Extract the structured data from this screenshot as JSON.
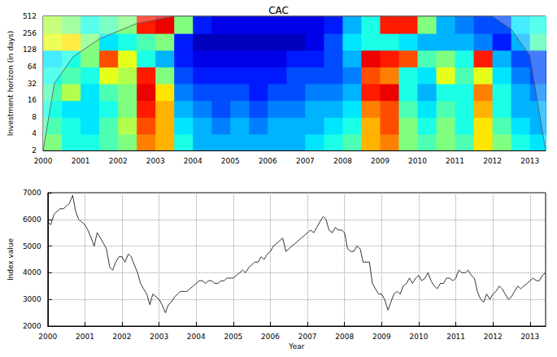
{
  "chart_data": [
    {
      "type": "heatmap",
      "title": "CAC",
      "ylabel": "Investment horizon (in days)",
      "log": "y",
      "xlim": [
        2000,
        2013.42
      ],
      "xticks": [
        2000,
        2001,
        2002,
        2003,
        2004,
        2005,
        2006,
        2007,
        2008,
        2009,
        2010,
        2011,
        2012,
        2013
      ],
      "ylim": [
        2,
        512
      ],
      "yticks": [
        2,
        4,
        8,
        16,
        32,
        64,
        128,
        256,
        512
      ],
      "x": [
        2000.0,
        2000.5,
        2001.0,
        2001.5,
        2002.0,
        2002.5,
        2003.0,
        2003.5,
        2004.0,
        2004.5,
        2005.0,
        2005.5,
        2006.0,
        2006.5,
        2007.0,
        2007.5,
        2008.0,
        2008.5,
        2009.0,
        2009.5,
        2010.0,
        2010.5,
        2011.0,
        2011.5,
        2012.0,
        2012.5,
        2013.0
      ],
      "y": [
        2,
        4,
        8,
        16,
        32,
        64,
        128,
        256
      ],
      "values": [
        [
          0.5,
          0.4,
          0.4,
          0.45,
          0.5,
          0.75,
          0.7,
          0.4,
          0.3,
          0.3,
          0.3,
          0.3,
          0.3,
          0.3,
          0.35,
          0.4,
          0.45,
          0.7,
          0.75,
          0.5,
          0.45,
          0.5,
          0.45,
          0.65,
          0.5,
          0.4,
          0.35
        ],
        [
          0.45,
          0.4,
          0.35,
          0.45,
          0.55,
          0.8,
          0.7,
          0.35,
          0.3,
          0.25,
          0.3,
          0.25,
          0.3,
          0.3,
          0.3,
          0.35,
          0.4,
          0.7,
          0.8,
          0.5,
          0.4,
          0.5,
          0.4,
          0.65,
          0.45,
          0.35,
          0.3
        ],
        [
          0.4,
          0.35,
          0.35,
          0.4,
          0.5,
          0.85,
          0.7,
          0.3,
          0.25,
          0.2,
          0.25,
          0.2,
          0.25,
          0.25,
          0.3,
          0.3,
          0.35,
          0.75,
          0.8,
          0.45,
          0.35,
          0.45,
          0.4,
          0.7,
          0.4,
          0.3,
          0.3
        ],
        [
          0.45,
          0.55,
          0.35,
          0.45,
          0.5,
          0.9,
          0.65,
          0.25,
          0.2,
          0.2,
          0.2,
          0.15,
          0.2,
          0.2,
          0.25,
          0.25,
          0.3,
          0.85,
          0.9,
          0.4,
          0.3,
          0.4,
          0.4,
          0.75,
          0.4,
          0.3,
          0.25
        ],
        [
          0.4,
          0.45,
          0.4,
          0.6,
          0.55,
          0.85,
          0.5,
          0.2,
          0.15,
          0.15,
          0.15,
          0.15,
          0.15,
          0.2,
          0.2,
          0.2,
          0.25,
          0.8,
          0.75,
          0.4,
          0.35,
          0.6,
          0.45,
          0.6,
          0.35,
          0.25,
          0.2
        ],
        [
          0.35,
          0.4,
          0.5,
          0.8,
          0.6,
          0.4,
          0.3,
          0.15,
          0.1,
          0.1,
          0.1,
          0.1,
          0.1,
          0.15,
          0.15,
          0.2,
          0.3,
          0.9,
          0.85,
          0.8,
          0.45,
          0.5,
          0.4,
          0.85,
          0.3,
          0.2,
          0.2
        ],
        [
          0.6,
          0.65,
          0.5,
          0.35,
          0.4,
          0.45,
          0.5,
          0.15,
          0.05,
          0.05,
          0.05,
          0.05,
          0.05,
          0.05,
          0.1,
          0.2,
          0.35,
          0.4,
          0.4,
          0.35,
          0.3,
          0.3,
          0.3,
          0.25,
          0.15,
          0.3,
          0.45
        ],
        [
          0.55,
          0.5,
          0.4,
          0.45,
          0.5,
          0.85,
          0.9,
          0.5,
          0.15,
          0.1,
          0.1,
          0.1,
          0.1,
          0.1,
          0.1,
          0.15,
          0.3,
          0.4,
          0.85,
          0.85,
          0.5,
          0.3,
          0.25,
          0.2,
          0.2,
          0.35,
          0.4
        ]
      ],
      "zlim": [
        0,
        1
      ],
      "cone_of_influence": {
        "x": [
          2000,
          2000.3,
          2000.8,
          2001.5,
          2002.5,
          2003.5,
          2012.0,
          2012.5,
          2013.0,
          2013.42
        ],
        "y": [
          2,
          32,
          96,
          200,
          380,
          512,
          512,
          300,
          100,
          2
        ]
      }
    },
    {
      "type": "line",
      "xlabel": "Year",
      "ylabel": "Index value",
      "color": "#000000",
      "grid": true,
      "xlim": [
        2000,
        2013.42
      ],
      "xticks": [
        2000,
        2001,
        2002,
        2003,
        2004,
        2005,
        2006,
        2007,
        2008,
        2009,
        2010,
        2011,
        2012,
        2013
      ],
      "ylim": [
        2000,
        7000
      ],
      "yticks": [
        2000,
        3000,
        4000,
        5000,
        6000,
        7000
      ],
      "x": [
        2000.0,
        2000.08,
        2000.17,
        2000.25,
        2000.33,
        2000.42,
        2000.5,
        2000.58,
        2000.67,
        2000.75,
        2000.83,
        2000.92,
        2001.0,
        2001.08,
        2001.17,
        2001.25,
        2001.33,
        2001.42,
        2001.5,
        2001.58,
        2001.67,
        2001.75,
        2001.83,
        2001.92,
        2002.0,
        2002.08,
        2002.17,
        2002.25,
        2002.33,
        2002.42,
        2002.5,
        2002.58,
        2002.67,
        2002.75,
        2002.83,
        2002.92,
        2003.0,
        2003.08,
        2003.17,
        2003.25,
        2003.33,
        2003.42,
        2003.5,
        2003.58,
        2003.67,
        2003.75,
        2003.83,
        2003.92,
        2004.0,
        2004.08,
        2004.17,
        2004.25,
        2004.33,
        2004.42,
        2004.5,
        2004.58,
        2004.67,
        2004.75,
        2004.83,
        2004.92,
        2005.0,
        2005.08,
        2005.17,
        2005.25,
        2005.33,
        2005.42,
        2005.5,
        2005.58,
        2005.67,
        2005.75,
        2005.83,
        2005.92,
        2006.0,
        2006.08,
        2006.17,
        2006.25,
        2006.33,
        2006.42,
        2006.5,
        2006.58,
        2006.67,
        2006.75,
        2006.83,
        2006.92,
        2007.0,
        2007.08,
        2007.17,
        2007.25,
        2007.33,
        2007.42,
        2007.5,
        2007.58,
        2007.67,
        2007.75,
        2007.83,
        2007.92,
        2008.0,
        2008.08,
        2008.17,
        2008.25,
        2008.33,
        2008.42,
        2008.5,
        2008.58,
        2008.67,
        2008.75,
        2008.83,
        2008.92,
        2009.0,
        2009.08,
        2009.17,
        2009.25,
        2009.33,
        2009.42,
        2009.5,
        2009.58,
        2009.67,
        2009.75,
        2009.83,
        2009.92,
        2010.0,
        2010.08,
        2010.17,
        2010.25,
        2010.33,
        2010.42,
        2010.5,
        2010.58,
        2010.67,
        2010.75,
        2010.83,
        2010.92,
        2011.0,
        2011.08,
        2011.17,
        2011.25,
        2011.33,
        2011.42,
        2011.5,
        2011.58,
        2011.67,
        2011.75,
        2011.83,
        2011.92,
        2012.0,
        2012.08,
        2012.17,
        2012.25,
        2012.33,
        2012.42,
        2012.5,
        2012.58,
        2012.67,
        2012.75,
        2012.83,
        2012.92,
        2013.0,
        2013.08,
        2013.17,
        2013.25,
        2013.33,
        2013.42
      ],
      "values": [
        5900,
        5800,
        6200,
        6300,
        6400,
        6400,
        6500,
        6600,
        6900,
        6300,
        6000,
        5900,
        5800,
        5600,
        5300,
        5000,
        5500,
        5300,
        5100,
        4900,
        4200,
        4100,
        4400,
        4600,
        4600,
        4400,
        4700,
        4600,
        4300,
        4000,
        3600,
        3400,
        3200,
        2800,
        3200,
        3100,
        3000,
        2800,
        2500,
        2800,
        2900,
        3100,
        3200,
        3300,
        3300,
        3300,
        3400,
        3500,
        3600,
        3700,
        3700,
        3600,
        3700,
        3700,
        3600,
        3600,
        3700,
        3700,
        3800,
        3800,
        3800,
        3900,
        4000,
        4100,
        4000,
        4200,
        4300,
        4400,
        4400,
        4600,
        4500,
        4700,
        4800,
        5000,
        5100,
        5200,
        5300,
        4800,
        4900,
        5000,
        5100,
        5200,
        5300,
        5400,
        5500,
        5600,
        5500,
        5700,
        5900,
        6100,
        6000,
        5600,
        5500,
        5700,
        5600,
        5600,
        5500,
        4900,
        4800,
        4800,
        5000,
        4900,
        4400,
        4400,
        4400,
        3600,
        3400,
        3200,
        3200,
        3000,
        2600,
        2900,
        3200,
        3300,
        3200,
        3500,
        3600,
        3800,
        3600,
        3800,
        3900,
        3700,
        3800,
        4000,
        3700,
        3500,
        3400,
        3600,
        3600,
        3800,
        3800,
        3700,
        3800,
        4100,
        4000,
        4000,
        4100,
        3900,
        3800,
        3300,
        3000,
        2900,
        3200,
        3000,
        3200,
        3300,
        3500,
        3400,
        3200,
        3000,
        3100,
        3300,
        3500,
        3400,
        3500,
        3600,
        3700,
        3800,
        3700,
        3700,
        3900,
        4000
      ]
    }
  ]
}
